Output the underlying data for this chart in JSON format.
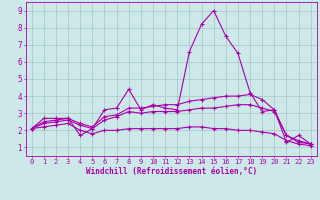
{
  "xlabel": "Windchill (Refroidissement éolien,°C)",
  "ylabel": "",
  "background_color": "#cce8e8",
  "grid_color": "#aacccc",
  "line_color": "#aa00aa",
  "xlim": [
    -0.5,
    23.5
  ],
  "ylim": [
    0.5,
    9.5
  ],
  "xticks": [
    0,
    1,
    2,
    3,
    4,
    5,
    6,
    7,
    8,
    9,
    10,
    11,
    12,
    13,
    14,
    15,
    16,
    17,
    18,
    19,
    20,
    21,
    22,
    23
  ],
  "yticks": [
    1,
    2,
    3,
    4,
    5,
    6,
    7,
    8,
    9
  ],
  "lines": [
    {
      "x": [
        0,
        1,
        2,
        3,
        4,
        5,
        6,
        7,
        8,
        9,
        10,
        11,
        12,
        13,
        14,
        15,
        16,
        17,
        18,
        19,
        20,
        21,
        22,
        23
      ],
      "y": [
        2.1,
        2.7,
        2.7,
        2.7,
        1.7,
        2.1,
        3.2,
        3.3,
        4.4,
        3.2,
        3.5,
        3.3,
        3.2,
        6.6,
        8.2,
        9.0,
        7.5,
        6.5,
        4.2,
        3.1,
        3.2,
        1.3,
        1.7,
        1.2
      ]
    },
    {
      "x": [
        0,
        1,
        2,
        3,
        4,
        5,
        6,
        7,
        8,
        9,
        10,
        11,
        12,
        13,
        14,
        15,
        16,
        17,
        18,
        19,
        20,
        21,
        22,
        23
      ],
      "y": [
        2.1,
        2.5,
        2.6,
        2.7,
        2.4,
        2.2,
        2.8,
        2.9,
        3.3,
        3.3,
        3.4,
        3.5,
        3.5,
        3.7,
        3.8,
        3.9,
        4.0,
        4.0,
        4.1,
        3.8,
        3.2,
        1.7,
        1.3,
        1.2
      ]
    },
    {
      "x": [
        0,
        1,
        2,
        3,
        4,
        5,
        6,
        7,
        8,
        9,
        10,
        11,
        12,
        13,
        14,
        15,
        16,
        17,
        18,
        19,
        20,
        21,
        22,
        23
      ],
      "y": [
        2.1,
        2.4,
        2.5,
        2.6,
        2.3,
        2.1,
        2.6,
        2.8,
        3.1,
        3.0,
        3.1,
        3.1,
        3.1,
        3.2,
        3.3,
        3.3,
        3.4,
        3.5,
        3.5,
        3.3,
        3.1,
        1.7,
        1.4,
        1.2
      ]
    },
    {
      "x": [
        0,
        1,
        2,
        3,
        4,
        5,
        6,
        7,
        8,
        9,
        10,
        11,
        12,
        13,
        14,
        15,
        16,
        17,
        18,
        19,
        20,
        21,
        22,
        23
      ],
      "y": [
        2.1,
        2.2,
        2.3,
        2.4,
        2.0,
        1.8,
        2.0,
        2.0,
        2.1,
        2.1,
        2.1,
        2.1,
        2.1,
        2.2,
        2.2,
        2.1,
        2.1,
        2.0,
        2.0,
        1.9,
        1.8,
        1.4,
        1.2,
        1.1
      ]
    }
  ]
}
